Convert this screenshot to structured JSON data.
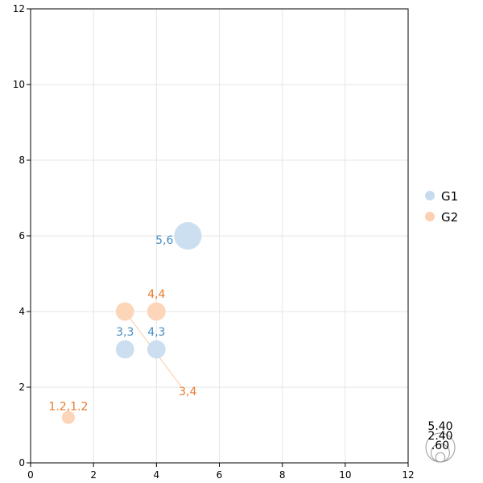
{
  "chart_data": {
    "type": "scatter",
    "title": "",
    "xlabel": "",
    "ylabel": "",
    "xlim": [
      0,
      12
    ],
    "ylim": [
      0,
      12
    ],
    "x_ticks": [
      "0",
      "2",
      "4",
      "6",
      "8",
      "10",
      "12"
    ],
    "y_ticks": [
      "0",
      "2",
      "4",
      "6",
      "8",
      "10",
      "12"
    ],
    "grid": true,
    "legend_position": "right",
    "series": [
      {
        "name": "G1",
        "color": "#c6dbef",
        "label_color": "#4a8ec4",
        "points": [
          {
            "x": 3,
            "y": 3,
            "size": 2.4,
            "label": "3,3"
          },
          {
            "x": 4,
            "y": 3,
            "size": 2.4,
            "label": "4,3"
          },
          {
            "x": 5,
            "y": 6,
            "size": 5.4,
            "label": "5,6"
          }
        ]
      },
      {
        "name": "G2",
        "color": "#fdd0b1",
        "label_color": "#e8792c",
        "points": [
          {
            "x": 1.2,
            "y": 1.2,
            "size": 1.2,
            "label": "1.2,1.2"
          },
          {
            "x": 3,
            "y": 4,
            "size": 2.4,
            "label": "3,4"
          },
          {
            "x": 4,
            "y": 4,
            "size": 2.4,
            "label": "4,4"
          }
        ]
      }
    ],
    "size_legend": [
      "5.40",
      "2.40",
      ".60"
    ]
  }
}
